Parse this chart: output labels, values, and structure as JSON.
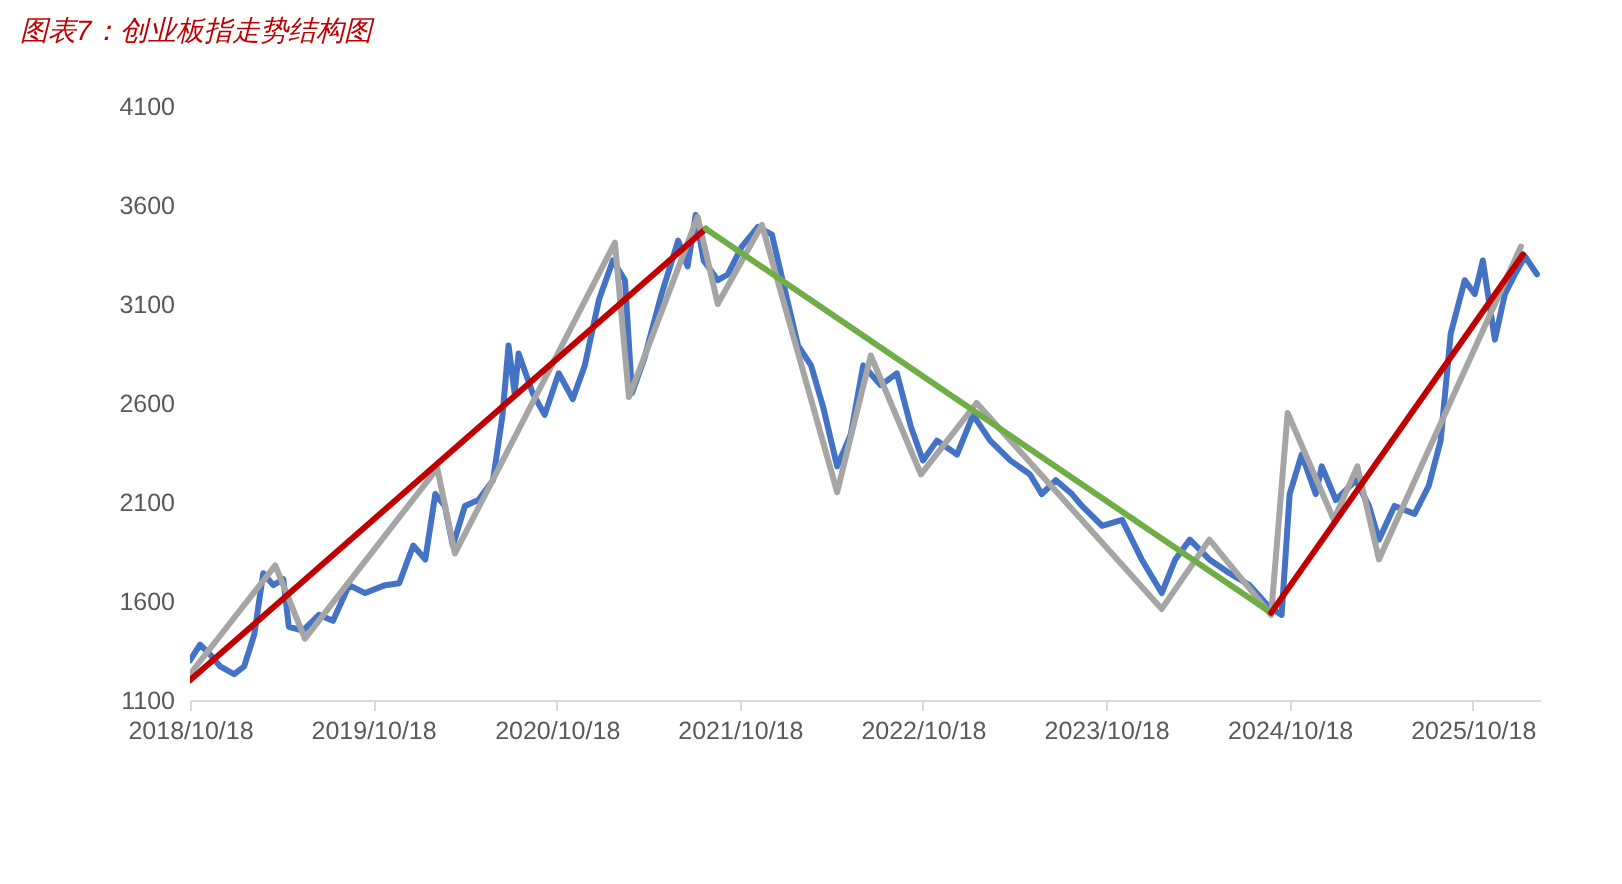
{
  "chart_data": {
    "type": "line",
    "title": "图表7：创业板指走势结构图",
    "xlim": [
      "2018-10-18",
      "2026-03-01"
    ],
    "xticks": [
      {
        "value": "2018-10-18",
        "label": "2018/10/18"
      },
      {
        "value": "2019-10-18",
        "label": "2019/10/18"
      },
      {
        "value": "2020-10-18",
        "label": "2020/10/18"
      },
      {
        "value": "2021-10-18",
        "label": "2021/10/18"
      },
      {
        "value": "2022-10-18",
        "label": "2022/10/18"
      },
      {
        "value": "2023-10-18",
        "label": "2023/10/18"
      },
      {
        "value": "2024-10-18",
        "label": "2024/10/18"
      },
      {
        "value": "2025-10-18",
        "label": "2025/10/18"
      }
    ],
    "ylim": [
      1100,
      4100
    ],
    "yticks": [
      1100,
      1600,
      2100,
      2600,
      3100,
      3600,
      4100
    ],
    "series": [
      {
        "color": "#4472c4",
        "x": [
          "2018-10-18",
          "2018-11-07",
          "2018-11-27",
          "2018-12-17",
          "2019-01-14",
          "2019-02-03",
          "2019-02-23",
          "2019-03-13",
          "2019-04-02",
          "2019-04-22",
          "2019-05-03",
          "2019-05-31",
          "2019-07-02",
          "2019-07-30",
          "2019-08-31",
          "2019-10-02",
          "2019-11-11",
          "2019-12-09",
          "2020-01-06",
          "2020-01-30",
          "2020-02-19",
          "2020-03-09",
          "2020-03-25",
          "2020-04-18",
          "2020-05-15",
          "2020-06-13",
          "2020-07-02",
          "2020-07-14",
          "2020-07-26",
          "2020-08-03",
          "2020-08-31",
          "2020-09-24",
          "2020-10-22",
          "2020-11-19",
          "2020-12-13",
          "2021-01-10",
          "2021-02-07",
          "2021-03-03",
          "2021-03-17",
          "2021-04-10",
          "2021-05-15",
          "2021-06-17",
          "2021-07-06",
          "2021-07-22",
          "2021-08-07",
          "2021-09-04",
          "2021-09-24",
          "2021-10-22",
          "2021-11-23",
          "2021-12-21",
          "2022-01-14",
          "2022-02-11",
          "2022-03-09",
          "2022-04-02",
          "2022-04-30",
          "2022-05-27",
          "2022-06-21",
          "2022-07-26",
          "2022-08-27",
          "2022-09-24",
          "2022-10-18",
          "2022-11-15",
          "2022-12-25",
          "2023-01-26",
          "2023-03-01",
          "2023-04-10",
          "2023-05-19",
          "2023-06-12",
          "2023-07-10",
          "2023-08-11",
          "2023-08-31",
          "2023-10-10",
          "2023-11-19",
          "2023-12-28",
          "2024-02-06",
          "2024-03-04",
          "2024-04-02",
          "2024-05-11",
          "2024-06-20",
          "2024-07-30",
          "2024-09-07",
          "2024-10-02",
          "2024-10-18",
          "2024-11-11",
          "2024-12-09",
          "2024-12-21",
          "2025-01-18",
          "2025-02-27",
          "2025-03-25",
          "2025-04-14",
          "2025-05-15",
          "2025-06-24",
          "2025-07-22",
          "2025-08-15",
          "2025-09-04",
          "2025-10-02",
          "2025-10-22",
          "2025-11-07",
          "2025-12-01",
          "2025-12-21",
          "2026-01-10",
          "2026-01-30",
          "2026-02-23"
        ],
        "values": [
          1300,
          1380,
          1330,
          1270,
          1230,
          1270,
          1430,
          1740,
          1680,
          1710,
          1470,
          1450,
          1530,
          1500,
          1680,
          1640,
          1680,
          1690,
          1880,
          1810,
          2140,
          2080,
          1880,
          2080,
          2110,
          2210,
          2540,
          2890,
          2650,
          2850,
          2650,
          2540,
          2750,
          2620,
          2790,
          3120,
          3320,
          3220,
          2650,
          2820,
          3150,
          3420,
          3290,
          3550,
          3320,
          3220,
          3250,
          3390,
          3490,
          3450,
          3190,
          2890,
          2790,
          2580,
          2280,
          2440,
          2790,
          2690,
          2750,
          2480,
          2310,
          2410,
          2340,
          2540,
          2410,
          2310,
          2240,
          2140,
          2210,
          2140,
          2080,
          1980,
          2010,
          1810,
          1640,
          1810,
          1910,
          1810,
          1740,
          1680,
          1570,
          1530,
          2140,
          2340,
          2140,
          2280,
          2110,
          2210,
          2080,
          1910,
          2080,
          2040,
          2180,
          2410,
          2950,
          3220,
          3150,
          3320,
          2920,
          3150,
          3250,
          3340,
          3250
        ]
      },
      {
        "color": "#a5a5a5",
        "x": [
          "2018-10-18",
          "2019-04-06",
          "2019-06-04",
          "2020-02-23",
          "2020-03-29",
          "2021-02-11",
          "2021-03-11",
          "2021-07-26",
          "2021-09-04",
          "2021-12-01",
          "2022-04-30",
          "2022-07-06",
          "2022-10-14",
          "2023-02-02",
          "2024-02-06",
          "2024-05-11",
          "2024-09-11",
          "2024-10-14",
          "2025-01-14",
          "2025-03-02",
          "2025-04-14",
          "2026-01-22"
        ],
        "values": [
          1230,
          1780,
          1410,
          2270,
          1840,
          3410,
          2630,
          3540,
          3100,
          3500,
          2150,
          2840,
          2240,
          2600,
          1560,
          1910,
          1530,
          2550,
          2010,
          2280,
          1810,
          3390
        ]
      },
      {
        "color": "#c00000",
        "x": [
          "2018-10-18",
          "2021-08-11"
        ],
        "values": [
          1200,
          3480
        ]
      },
      {
        "color": "#70ad47",
        "x": [
          "2021-08-11",
          "2024-09-11"
        ],
        "values": [
          3480,
          1540
        ]
      },
      {
        "color": "#c00000",
        "x": [
          "2024-09-11",
          "2026-01-26"
        ],
        "values": [
          1540,
          3350
        ]
      }
    ]
  }
}
